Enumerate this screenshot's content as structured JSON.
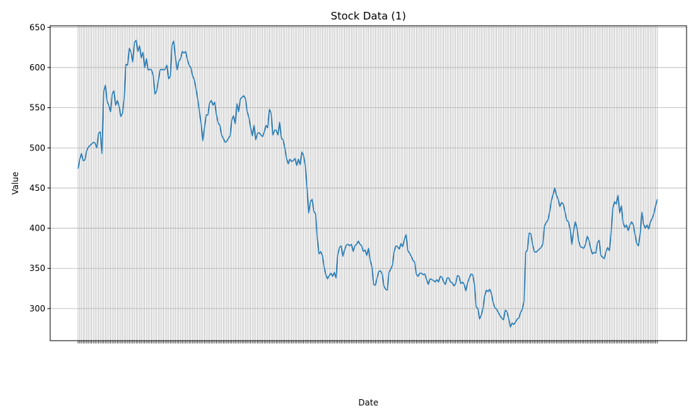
{
  "chart_data": {
    "type": "line",
    "title": "Stock Data (1)",
    "xlabel": "Date",
    "ylabel": "Value",
    "ylim": [
      260,
      652
    ],
    "yticks": [
      300,
      350,
      400,
      450,
      500,
      550,
      600,
      650
    ],
    "grid": true,
    "x_tick_labels_rotated_deg": 45,
    "series": [
      {
        "color": "#1f77b4",
        "values": [
          474,
          486,
          493,
          484,
          485,
          496,
          501,
          503,
          505,
          507,
          506,
          500,
          518,
          520,
          493,
          570,
          578,
          558,
          553,
          545,
          567,
          571,
          553,
          559,
          552,
          539,
          543,
          562,
          604,
          603,
          624,
          619,
          607,
          631,
          634,
          620,
          627,
          612,
          619,
          600,
          611,
          597,
          598,
          597,
          590,
          567,
          571,
          584,
          597,
          598,
          597,
          598,
          603,
          586,
          589,
          628,
          633,
          612,
          597,
          608,
          611,
          620,
          618,
          620,
          610,
          603,
          600,
          590,
          585,
          574,
          561,
          546,
          530,
          509,
          525,
          541,
          541,
          556,
          559,
          553,
          557,
          541,
          531,
          528,
          516,
          512,
          507,
          508,
          512,
          515,
          535,
          540,
          530,
          555,
          545,
          561,
          563,
          565,
          561,
          545,
          538,
          525,
          515,
          528,
          510,
          518,
          519,
          516,
          514,
          520,
          528,
          525,
          548,
          543,
          516,
          522,
          522,
          516,
          532,
          512,
          510,
          500,
          487,
          480,
          486,
          483,
          484,
          487,
          478,
          486,
          479,
          495,
          490,
          478,
          450,
          419,
          433,
          436,
          421,
          418,
          388,
          368,
          371,
          366,
          352,
          342,
          337,
          341,
          344,
          340,
          345,
          338,
          367,
          376,
          378,
          365,
          373,
          379,
          380,
          378,
          380,
          371,
          378,
          380,
          384,
          380,
          378,
          371,
          373,
          366,
          375,
          360,
          352,
          330,
          329,
          338,
          346,
          347,
          343,
          328,
          324,
          323,
          345,
          349,
          354,
          371,
          378,
          377,
          374,
          381,
          377,
          386,
          392,
          372,
          369,
          365,
          360,
          358,
          343,
          340,
          344,
          344,
          342,
          343,
          336,
          330,
          337,
          336,
          335,
          333,
          336,
          333,
          340,
          339,
          333,
          330,
          338,
          338,
          333,
          332,
          328,
          331,
          341,
          340,
          331,
          333,
          330,
          322,
          332,
          338,
          343,
          342,
          330,
          302,
          300,
          287,
          292,
          300,
          316,
          323,
          321,
          324,
          318,
          307,
          301,
          299,
          295,
          291,
          288,
          286,
          298,
          296,
          288,
          277,
          282,
          280,
          283,
          287,
          288,
          295,
          299,
          309,
          370,
          373,
          394,
          393,
          380,
          371,
          370,
          372,
          374,
          376,
          380,
          403,
          407,
          410,
          420,
          434,
          442,
          450,
          441,
          436,
          427,
          432,
          430,
          420,
          410,
          408,
          399,
          380,
          396,
          408,
          400,
          384,
          377,
          376,
          375,
          380,
          390,
          385,
          375,
          368,
          370,
          369,
          382,
          385,
          366,
          364,
          362,
          371,
          376,
          372,
          395,
          425,
          433,
          430,
          441,
          419,
          428,
          407,
          401,
          404,
          397,
          404,
          408,
          404,
          392,
          381,
          378,
          393,
          420,
          405,
          400,
          404,
          399,
          408,
          412,
          418,
          428,
          436
        ]
      }
    ]
  }
}
